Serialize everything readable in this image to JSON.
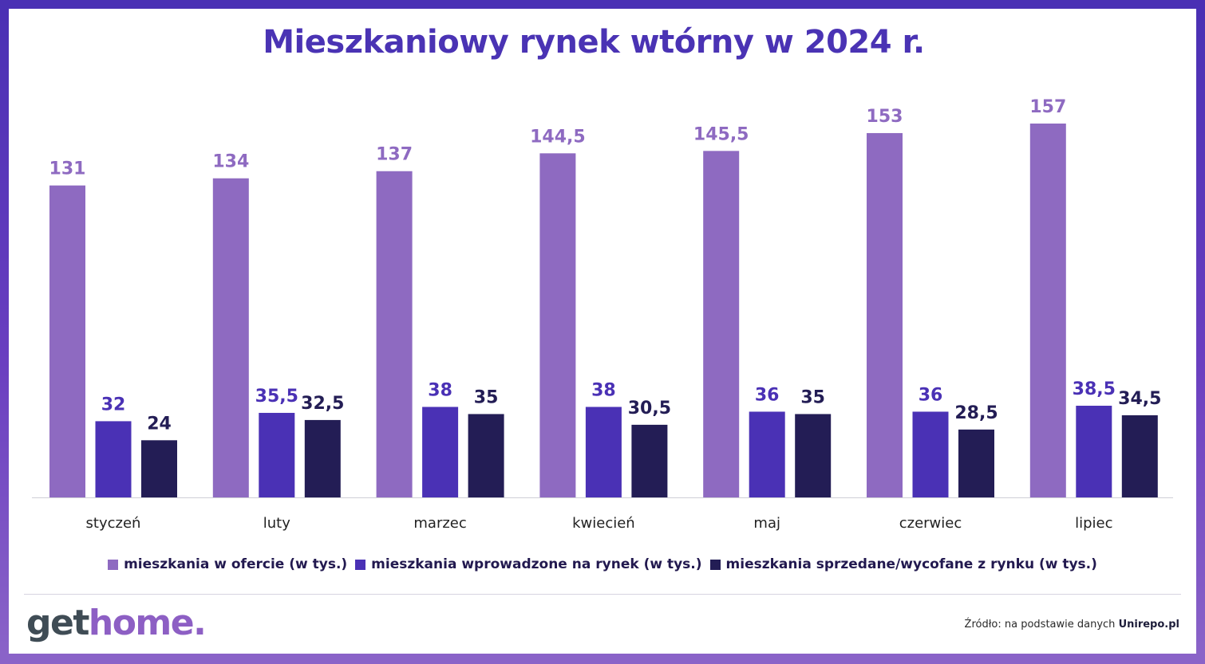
{
  "title": "Mieszkaniowy rynek wtórny w 2024 r.",
  "legend": [
    {
      "label": "mieszkania w ofercie (w tys.)",
      "color": "#8e6ac1"
    },
    {
      "label": "mieszkania wprowadzone na rynek (w tys.)",
      "color": "#4a31b5"
    },
    {
      "label": "mieszkania sprzedane/wycofane z rynku (w tys.)",
      "color": "#231d55"
    }
  ],
  "chart_data": {
    "type": "bar",
    "categories": [
      "styczeń",
      "luty",
      "marzec",
      "kwiecień",
      "maj",
      "czerwiec",
      "lipiec"
    ],
    "series": [
      {
        "name": "mieszkania w ofercie (w tys.)",
        "values": [
          131,
          134,
          137,
          144.5,
          145.5,
          153,
          157
        ],
        "labels": [
          "131",
          "134",
          "137",
          "144,5",
          "145,5",
          "153",
          "157"
        ],
        "color": "#8e6ac1",
        "label_color": "#8e6ac1"
      },
      {
        "name": "mieszkania wprowadzone na rynek (w tys.)",
        "values": [
          32,
          35.5,
          38,
          38,
          36,
          36,
          38.5
        ],
        "labels": [
          "32",
          "35,5",
          "38",
          "38",
          "36",
          "36",
          "38,5"
        ],
        "color": "#4a31b5",
        "label_color": "#4a31b5"
      },
      {
        "name": "mieszkania sprzedane/wycofane z rynku (w tys.)",
        "values": [
          24,
          32.5,
          35,
          30.5,
          35,
          28.5,
          34.5
        ],
        "labels": [
          "24",
          "32,5",
          "35",
          "30,5",
          "35",
          "28,5",
          "34,5"
        ],
        "color": "#231d55",
        "label_color": "#231d55"
      }
    ],
    "ylim": [
      0,
      157
    ],
    "grid": false,
    "legend_position": "bottom"
  },
  "logo": {
    "part1": "get",
    "part2": "home",
    "part3": "."
  },
  "source": {
    "prefix": "Źródło: na podstawie danych ",
    "name": "Unirepo.pl"
  }
}
